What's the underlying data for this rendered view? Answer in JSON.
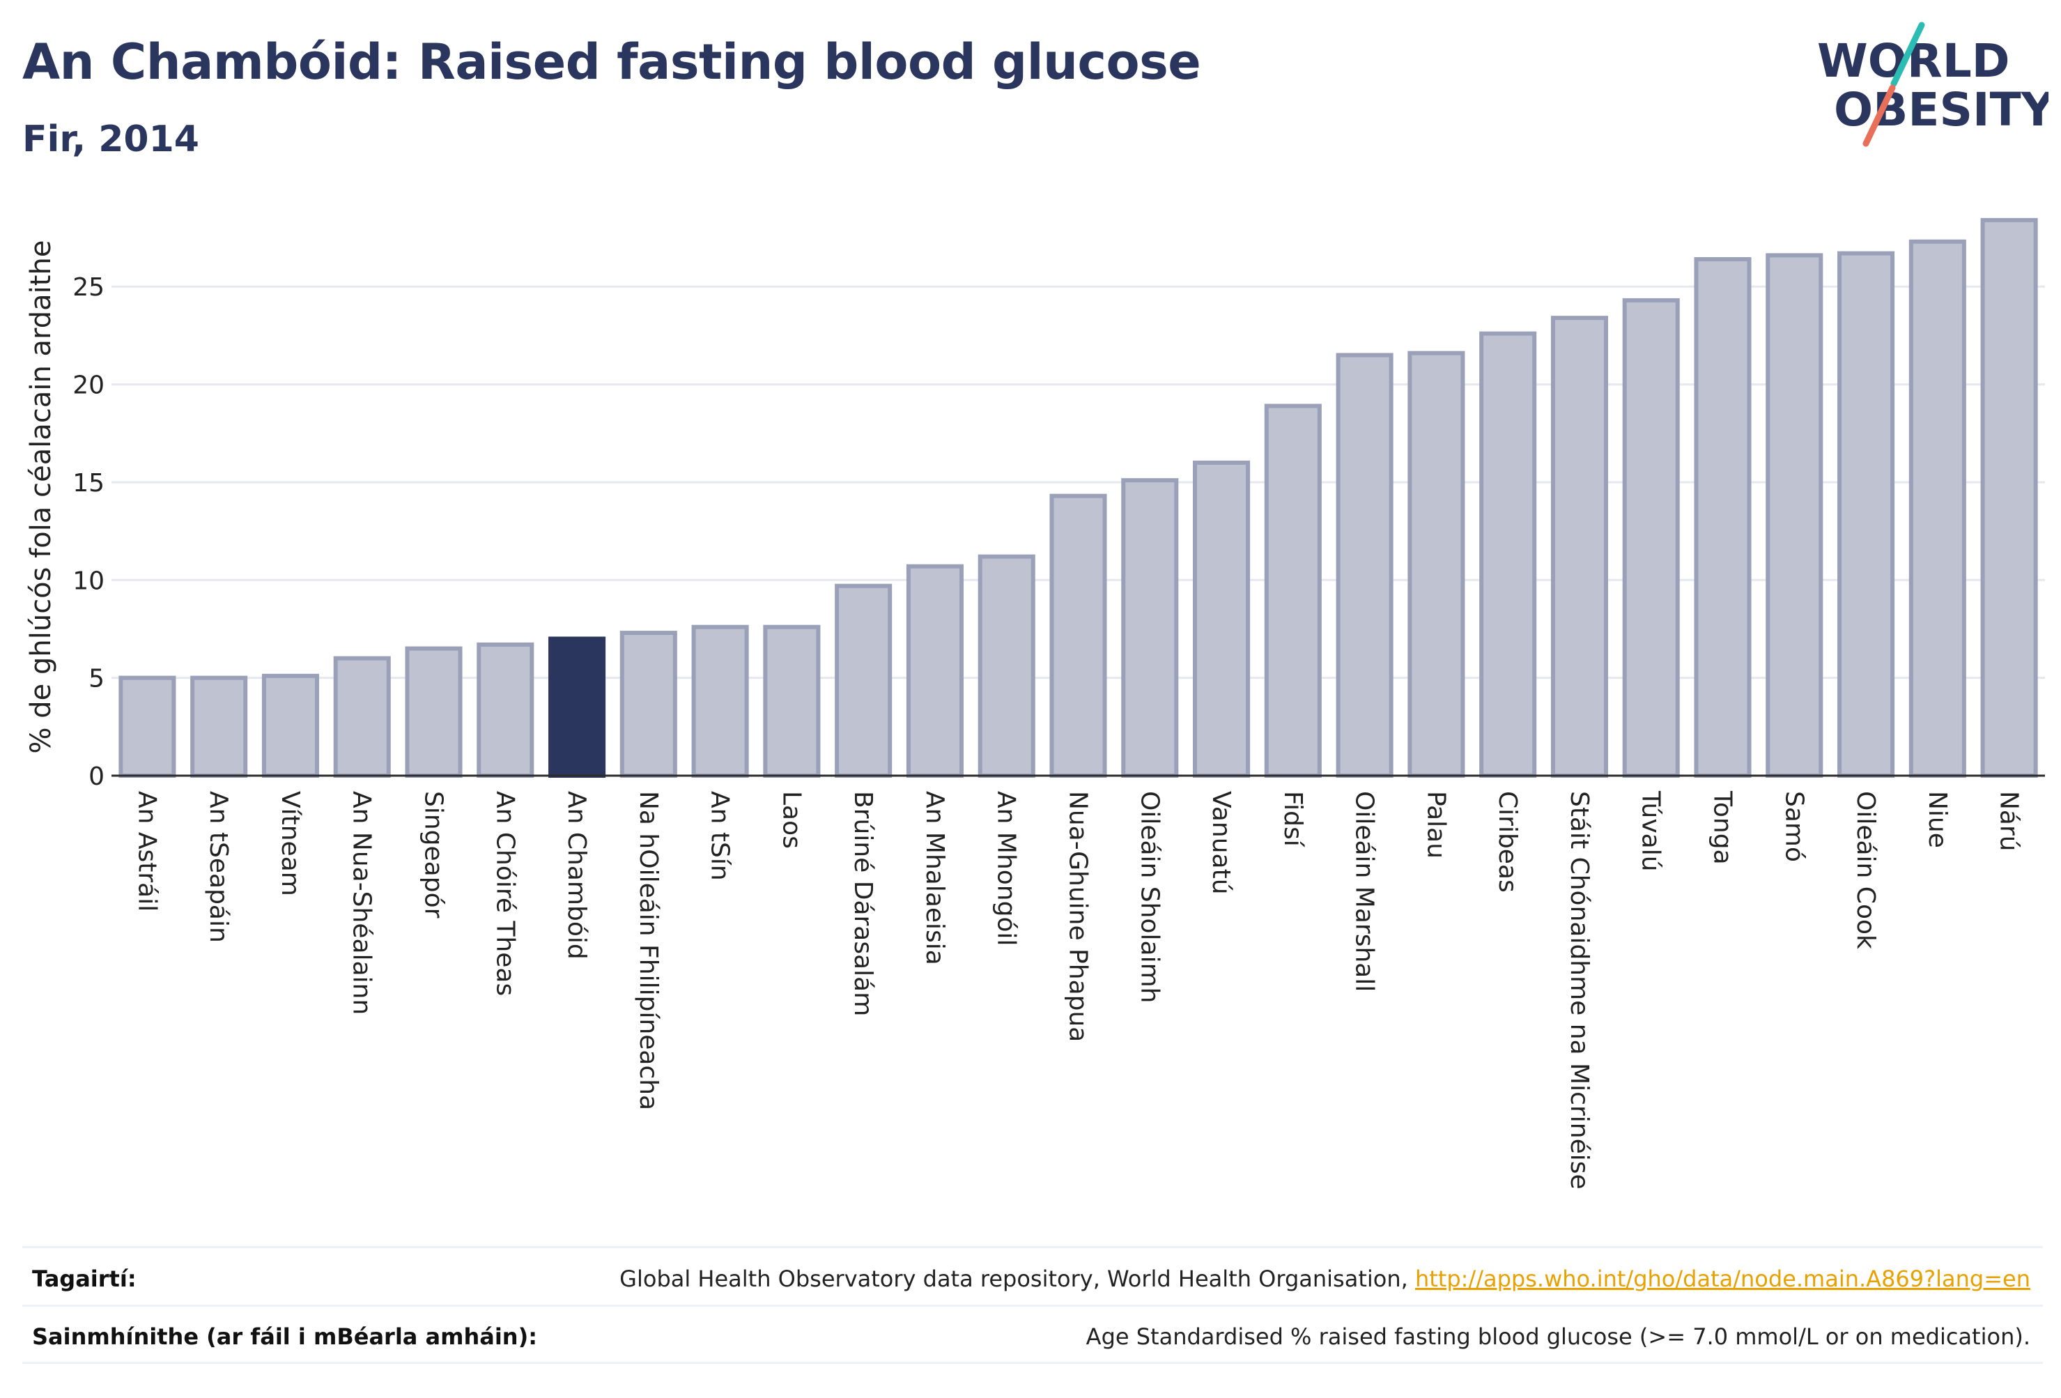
{
  "header": {
    "title": "An Chambóid: Raised fasting blood glucose",
    "subtitle": "Fir, 2014"
  },
  "logo": {
    "line1": "WORLD",
    "line2": "OBESITY",
    "colors": {
      "text": "#2b365f",
      "slash_top": "#2bbcb3",
      "slash_bottom": "#e8705a"
    }
  },
  "chart_data": {
    "type": "bar",
    "ylabel": "% de ghlúcós fola céalacain ardaithe",
    "xlabel": "",
    "ylim": [
      0,
      28.5
    ],
    "yticks": [
      0,
      5,
      10,
      15,
      20,
      25
    ],
    "grid": true,
    "highlight": "An Chambóid",
    "colors": {
      "bar": "#bfc3d1",
      "bar_stroke": "#9aa0b8",
      "highlight": "#2b365f",
      "grid": "#e6e8ef"
    },
    "categories": [
      "An Astráil",
      "An tSeapáin",
      "Vítneam",
      "An Nua-Shéalainn",
      "Singeapór",
      "An Chóiré Theas",
      "An Chambóid",
      "Na hOileáin Fhilipíneacha",
      "An tSín",
      "Laos",
      "Brúiné Dárasalám",
      "An Mhalaeisia",
      "An Mhongóil",
      "Nua-Ghuine Phapua",
      "Oileáin Sholaimh",
      "Vanuatú",
      "Fidsí",
      "Oileáin Marshall",
      "Palau",
      "Ciribeas",
      "Stáit Chónaidhme na Micrinéise",
      "Túvalú",
      "Tonga",
      "Samó",
      "Oileáin Cook",
      "Niue",
      "Nárú"
    ],
    "values": [
      5.0,
      5.0,
      5.1,
      6.0,
      6.5,
      6.7,
      7.0,
      7.3,
      7.6,
      7.6,
      9.7,
      10.7,
      11.2,
      14.3,
      15.1,
      16.0,
      18.9,
      21.5,
      21.6,
      22.6,
      23.4,
      24.3,
      26.4,
      26.6,
      26.7,
      27.3,
      28.4
    ]
  },
  "footer": {
    "references_label": "Tagairtí:",
    "references_text": "Global Health Observatory data repository, World Health Organisation,",
    "references_link": "http://apps.who.int/gho/data/node.main.A869?lang=en",
    "definitions_label": "Sainmhínithe (ar fáil i mBéarla amháin):",
    "definitions_text": "Age Standardised % raised fasting blood glucose (>= 7.0 mmol/L or on medication)."
  }
}
